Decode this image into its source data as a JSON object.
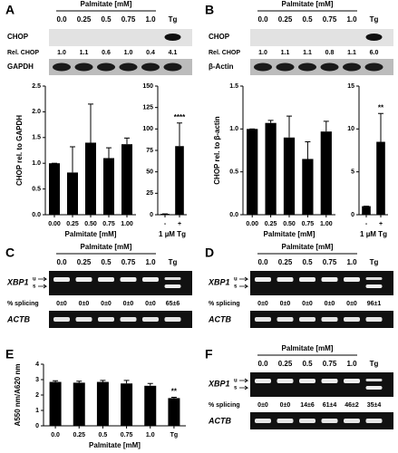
{
  "letters": [
    "A",
    "B",
    "C",
    "D",
    "E",
    "F"
  ],
  "blots": [
    {
      "header": "Palmitate [mM]",
      "lanes": [
        "0.0",
        "0.25",
        "0.5",
        "0.75",
        "1.0",
        "Tg"
      ],
      "bands": [
        "CHOP",
        "GAPDH"
      ],
      "ratio_label": "Rel. CHOP",
      "ratios": [
        "1.0",
        "1.1",
        "0.6",
        "1.0",
        "0.4",
        "4.1"
      ]
    },
    {
      "header": "Palmitate [mM]",
      "lanes": [
        "0.0",
        "0.25",
        "0.5",
        "0.75",
        "1.0",
        "Tg"
      ],
      "bands": [
        "CHOP",
        "β-Actin"
      ],
      "ratio_label": "Rel. CHOP",
      "ratios": [
        "1.0",
        "1.1",
        "1.1",
        "0.8",
        "1.1",
        "6.0"
      ]
    },
    {
      "header": "Palmitate [mM]",
      "lanes": [
        "0.0",
        "0.25",
        "0.5",
        "0.75",
        "1.0",
        "Tg"
      ],
      "bands": [
        "XBP1",
        "ACTB"
      ],
      "markers": [
        "u",
        "s"
      ],
      "ratio_label": "% splicing",
      "ratios": [
        "0±0",
        "0±0",
        "0±0",
        "0±0",
        "0±0",
        "65±6"
      ]
    },
    {
      "header": "Palmitate [mM]",
      "lanes": [
        "0.0",
        "0.25",
        "0.5",
        "0.75",
        "1.0",
        "Tg"
      ],
      "bands": [
        "XBP1",
        "ACTB"
      ],
      "markers": [
        "u",
        "s"
      ],
      "ratio_label": "% splicing",
      "ratios": [
        "0±0",
        "0±0",
        "0±0",
        "0±0",
        "0±0",
        "96±1"
      ]
    },
    {
      "header": "Palmitate [mM]",
      "lanes": [
        "0.0",
        "0.25",
        "0.5",
        "0.75",
        "1.0",
        "Tg"
      ],
      "bands": [
        "XBP1",
        "ACTB"
      ],
      "markers": [
        "u",
        "s"
      ],
      "ratio_label": "% splicing",
      "ratios": [
        "0±0",
        "0±0",
        "14±6",
        "61±4",
        "46±2",
        "35±4"
      ]
    }
  ],
  "chart_data": [
    {
      "type": "bar",
      "ylabel": "CHOP rel. to GAPDH",
      "xlabel": "Palmitate [mM]",
      "categories": [
        "0.00",
        "0.25",
        "0.50",
        "0.75",
        "1.00"
      ],
      "values": [
        1.0,
        0.82,
        1.4,
        1.1,
        1.37
      ],
      "errors": [
        0,
        0.5,
        0.75,
        0.2,
        0.12
      ],
      "color": "#000000",
      "ylim": [
        0,
        2.5
      ],
      "yticks": [
        {
          "value": 0,
          "label": "0.0"
        },
        {
          "value": 0.5,
          "label": "0.5"
        },
        {
          "value": 1,
          "label": "1.0"
        },
        {
          "value": 1.5,
          "label": "1.5"
        },
        {
          "value": 2,
          "label": "2.0"
        },
        {
          "value": 2.5,
          "label": "2.5"
        }
      ]
    },
    {
      "type": "bar",
      "xlabel": "1 µM Tg",
      "categories": [
        "-",
        "+"
      ],
      "values": [
        1,
        80
      ],
      "errors": [
        0,
        27
      ],
      "color": "#000000",
      "ylim": [
        0,
        150
      ],
      "yticks": [
        0,
        25,
        50,
        75,
        100,
        125,
        150
      ],
      "annotation": "****"
    },
    {
      "type": "bar",
      "ylabel": "CHOP rel. to β-actin",
      "xlabel": "Palmitate [mM]",
      "categories": [
        "0.00",
        "0.25",
        "0.50",
        "0.75",
        "1.00"
      ],
      "values": [
        1.0,
        1.07,
        0.9,
        0.65,
        0.97
      ],
      "errors": [
        0,
        0.03,
        0.25,
        0.2,
        0.12
      ],
      "color": "#000000",
      "ylim": [
        0,
        1.5
      ],
      "yticks": [
        {
          "value": 0,
          "label": "0.0"
        },
        {
          "value": 0.5,
          "label": "0.5"
        },
        {
          "value": 1,
          "label": "1.0"
        },
        {
          "value": 1.5,
          "label": "1.5"
        }
      ]
    },
    {
      "type": "bar",
      "xlabel": "1 µM Tg",
      "categories": [
        "-",
        "+"
      ],
      "values": [
        1,
        8.5
      ],
      "errors": [
        0,
        3.3
      ],
      "color": "#000000",
      "ylim": [
        0,
        15
      ],
      "yticks": [
        0,
        5,
        10,
        15
      ],
      "annotation": "**"
    },
    {
      "type": "bar",
      "ylabel": "A550 nm/A620 nm",
      "xlabel": "Palmitate [mM]",
      "categories": [
        "0.0",
        "0.25",
        "0.5",
        "0.75",
        "1.0",
        "Tg"
      ],
      "values": [
        2.85,
        2.8,
        2.85,
        2.75,
        2.6,
        1.8
      ],
      "errors": [
        0.08,
        0.1,
        0.1,
        0.2,
        0.15,
        0.05
      ],
      "color": "#000000",
      "ylim": [
        0,
        4
      ],
      "yticks": [
        0,
        1,
        2,
        3,
        4
      ],
      "annotation": "**"
    }
  ]
}
